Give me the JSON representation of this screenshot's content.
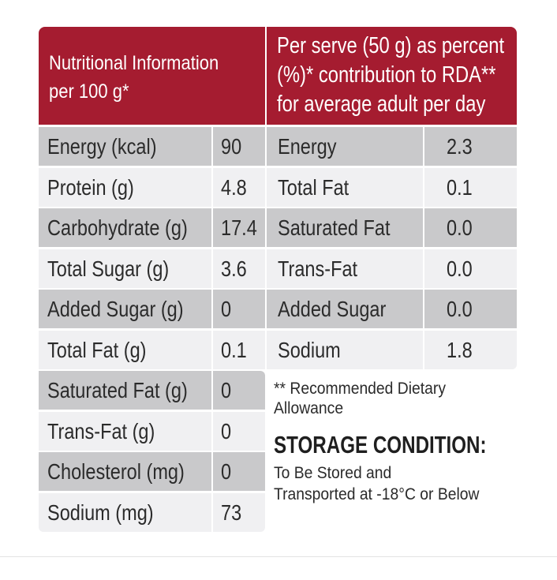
{
  "header": {
    "left_line1": "Nutritional Information",
    "left_line2": "per 100 g*",
    "right_line1": "Per serve (50 g) as percent",
    "right_line2": "(%)* contribution to RDA**",
    "right_line3": "for average adult per day"
  },
  "per100": [
    {
      "label": "Energy (kcal)",
      "value": "90"
    },
    {
      "label": "Protein (g)",
      "value": "4.8"
    },
    {
      "label": "Carbohydrate (g)",
      "value": "17.4"
    },
    {
      "label": "Total Sugar (g)",
      "value": "3.6"
    },
    {
      "label": "Added Sugar (g)",
      "value": "0"
    },
    {
      "label": "Total Fat (g)",
      "value": "0.1"
    },
    {
      "label": "Saturated Fat (g)",
      "value": "0"
    },
    {
      "label": "Trans-Fat (g)",
      "value": "0"
    },
    {
      "label": "Cholesterol (mg)",
      "value": "0"
    },
    {
      "label": "Sodium (mg)",
      "value": "73"
    }
  ],
  "rda": [
    {
      "label": "Energy",
      "value": "2.3"
    },
    {
      "label": "Total Fat",
      "value": "0.1"
    },
    {
      "label": "Saturated Fat",
      "value": "0.0"
    },
    {
      "label": "Trans-Fat",
      "value": "0.0"
    },
    {
      "label": "Added Sugar",
      "value": "0.0"
    },
    {
      "label": "Sodium",
      "value": "1.8"
    }
  ],
  "footnote": {
    "line1": "** Recommended Dietary",
    "line2": "Allowance"
  },
  "storage": {
    "title": "STORAGE CONDITION:",
    "line1": "To Be Stored and",
    "line2": "Transported at -18°C or Below"
  },
  "colors": {
    "header_red": "#a51c30",
    "row_gray": "#c9c9cb",
    "row_light": "#f0f0f2"
  }
}
